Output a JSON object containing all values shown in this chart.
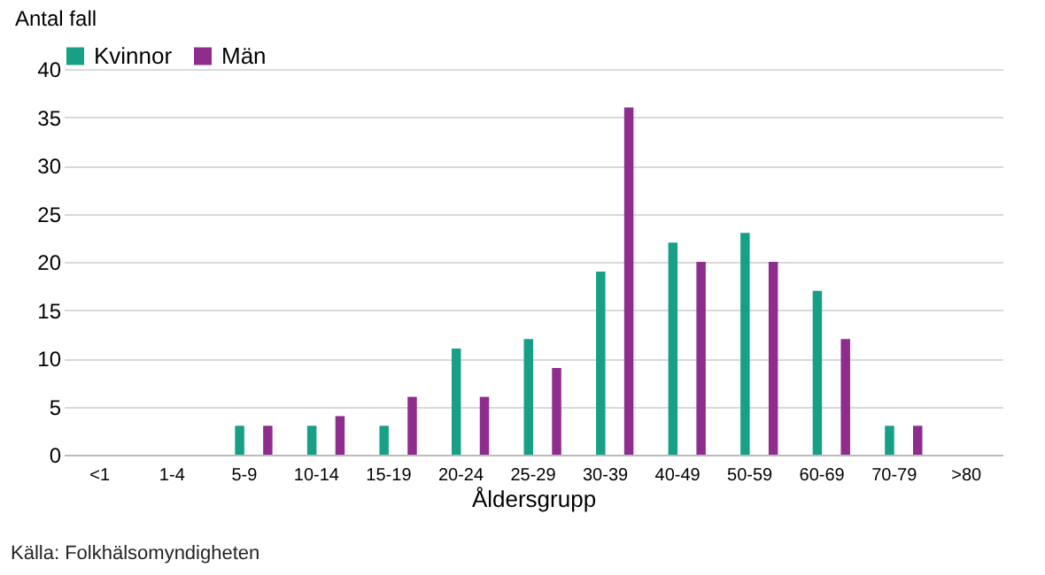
{
  "chart_data": {
    "type": "bar",
    "ylabel": "Antal fall",
    "xlabel": "Åldersgrupp",
    "annotations": [
      "Källa: Folkhälsomyndigheten"
    ],
    "categories": [
      "<1",
      "1-4",
      "5-9",
      "10-14",
      "15-19",
      "20-24",
      "25-29",
      "30-39",
      "40-49",
      "50-59",
      "60-69",
      "70-79",
      ">80"
    ],
    "series": [
      {
        "name": "Kvinnor",
        "color": "#17a086",
        "values": [
          0,
          0,
          3,
          3,
          3,
          11,
          12,
          19,
          22,
          23,
          17,
          3,
          0
        ]
      },
      {
        "name": "Män",
        "color": "#8e2d8e",
        "values": [
          0,
          0,
          3,
          4,
          6,
          6,
          9,
          36,
          20,
          20,
          12,
          3,
          0
        ]
      }
    ],
    "ylim": [
      0,
      40
    ],
    "yticks": [
      0,
      5,
      10,
      15,
      20,
      25,
      30,
      35,
      40
    ],
    "grid": "y",
    "legend": "top"
  }
}
